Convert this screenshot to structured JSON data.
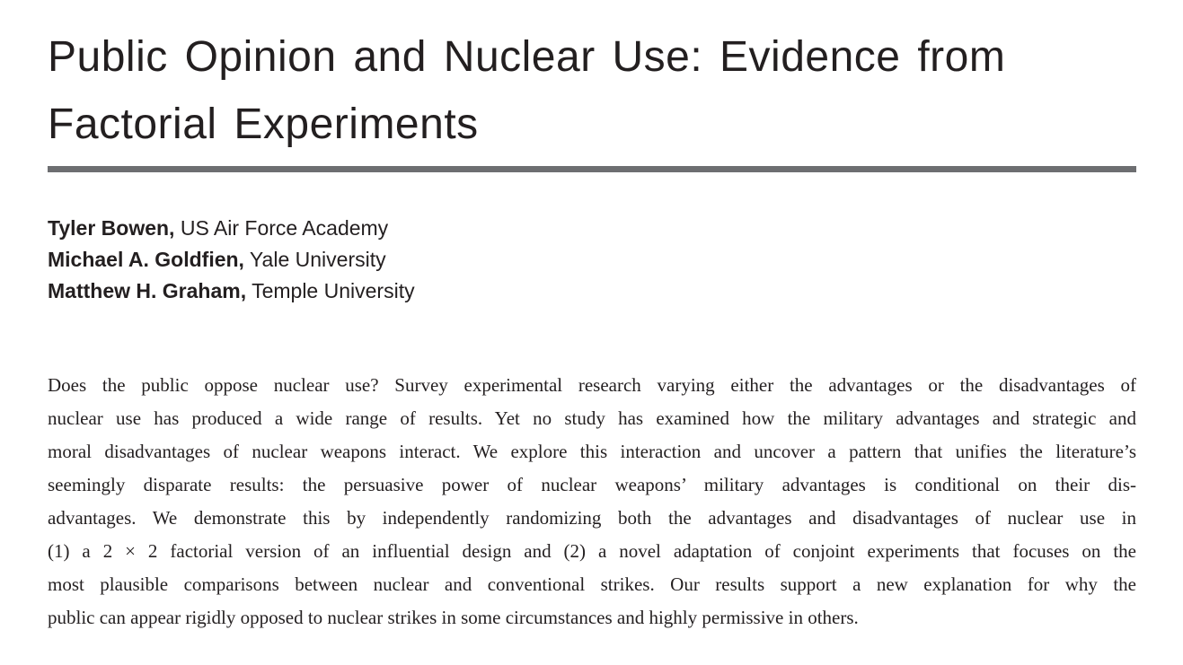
{
  "page": {
    "background_color": "#ffffff",
    "text_color": "#231f20",
    "rule_color": "#6d6e71"
  },
  "title": {
    "full": "Public Opinion and Nuclear Use: Evidence from Factorial Experiments",
    "lines": [
      "Public Opinion and Nuclear Use: Evidence from",
      "Factorial Experiments"
    ]
  },
  "authors": [
    {
      "name": "Tyler Bowen,",
      "affiliation": " US Air Force Academy"
    },
    {
      "name": "Michael A. Goldfien,",
      "affiliation": " Yale University"
    },
    {
      "name": "Matthew H. Graham,",
      "affiliation": " Temple University"
    }
  ],
  "abstract": {
    "lines": [
      "Does the public oppose nuclear use? Survey experimental research varying either the advantages or the disadvantages of",
      "nuclear use has produced a wide range of results. Yet no study has examined how the military advantages and strategic and",
      "moral disadvantages of nuclear weapons interact. We explore this interaction and uncover a pattern that unifies the literature’s",
      "seemingly disparate results: the persuasive power of nuclear weapons’ military advantages is conditional on their dis-",
      "advantages. We demonstrate this by independently randomizing both the advantages and disadvantages of nuclear use in",
      "(1) a 2 × 2 factorial version of an influential design and (2) a novel adaptation of conjoint experiments that focuses on the",
      "most plausible comparisons between nuclear and conventional strikes. Our results support a new explanation for why the",
      "public can appear rigidly opposed to nuclear strikes in some circumstances and highly permissive in others."
    ]
  }
}
